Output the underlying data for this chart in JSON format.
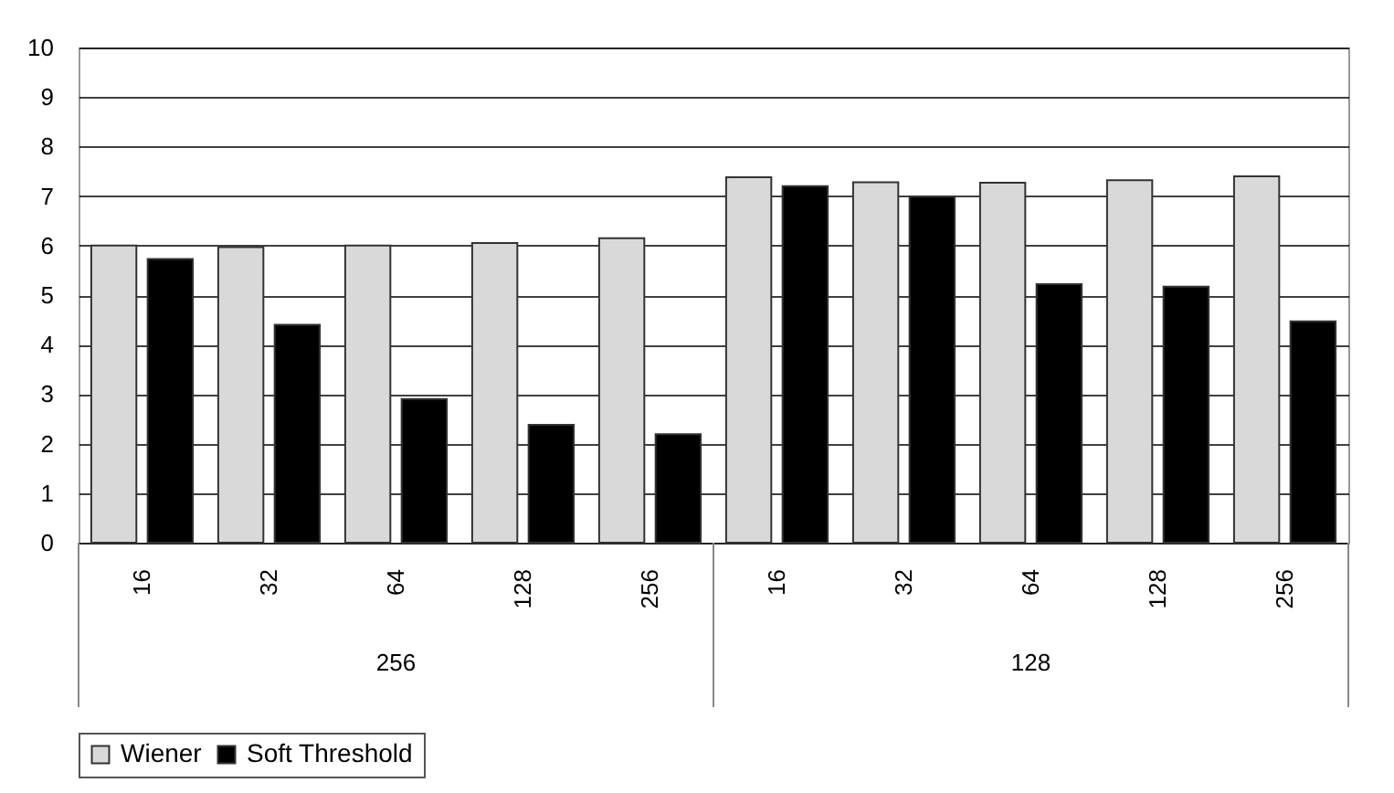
{
  "chart_data": {
    "type": "bar",
    "categories": [
      "16",
      "32",
      "64",
      "128",
      "256",
      "16",
      "32",
      "64",
      "128",
      "256"
    ],
    "series": [
      {
        "name": "Wiener",
        "color": "#d9d9d9",
        "values": [
          6.0,
          5.97,
          6.0,
          6.05,
          6.15,
          7.38,
          7.28,
          7.27,
          7.32,
          7.4
        ]
      },
      {
        "name": "Soft Threshold",
        "color": "#000000",
        "values": [
          5.73,
          4.4,
          2.9,
          2.38,
          2.19,
          7.2,
          6.99,
          5.22,
          5.17,
          4.47
        ]
      }
    ],
    "annotations": [
      "256",
      "128"
    ],
    "ylim": [
      0,
      10
    ],
    "yticks": [
      0,
      1,
      2,
      3,
      4,
      5,
      6,
      7,
      8,
      9,
      10
    ],
    "grid": "y",
    "legend": "bottom"
  }
}
